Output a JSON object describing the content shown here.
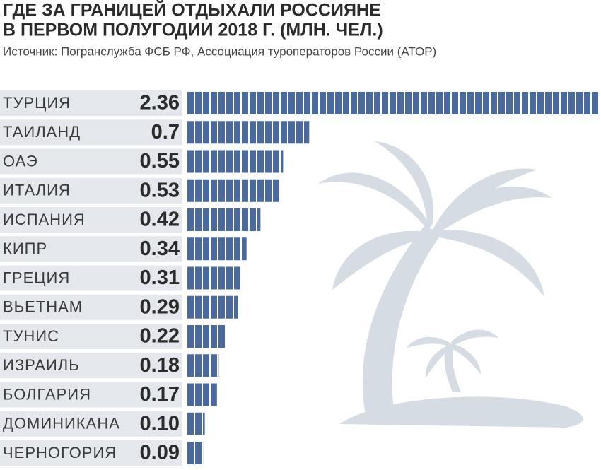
{
  "chart_data": {
    "type": "bar",
    "orientation": "horizontal",
    "title": [
      "ГДЕ ЗА ГРАНИЦЕЙ ОТДЫХАЛИ РОССИЯНЕ",
      "В ПЕРВОМ ПОЛУГОДИИ 2018 Г. (МЛН. ЧЕЛ.)"
    ],
    "subtitle": "Источник: Погранслужба ФСБ РФ, Ассоциация туроператоров России (АТОР)",
    "categories": [
      "ТУРЦИЯ",
      "ТАИЛАНД",
      "ОАЭ",
      "ИТАЛИЯ",
      "ИСПАНИЯ",
      "КИПР",
      "ГРЕЦИЯ",
      "ВЬЕТНАМ",
      "ТУНИС",
      "ИЗРАИЛЬ",
      "БОЛГАРИЯ",
      "ДОМИНИКАНА",
      "ЧЕРНОГОРИЯ"
    ],
    "values": [
      2.36,
      0.7,
      0.55,
      0.53,
      0.42,
      0.34,
      0.31,
      0.29,
      0.22,
      0.18,
      0.17,
      0.1,
      0.09
    ],
    "value_labels": [
      "2.36",
      "0.7",
      "0.55",
      "0.53",
      "0.42",
      "0.34",
      "0.31",
      "0.29",
      "0.22",
      "0.18",
      "0.17",
      "0.10",
      "0.09"
    ],
    "color": "#4a6a9e"
  }
}
